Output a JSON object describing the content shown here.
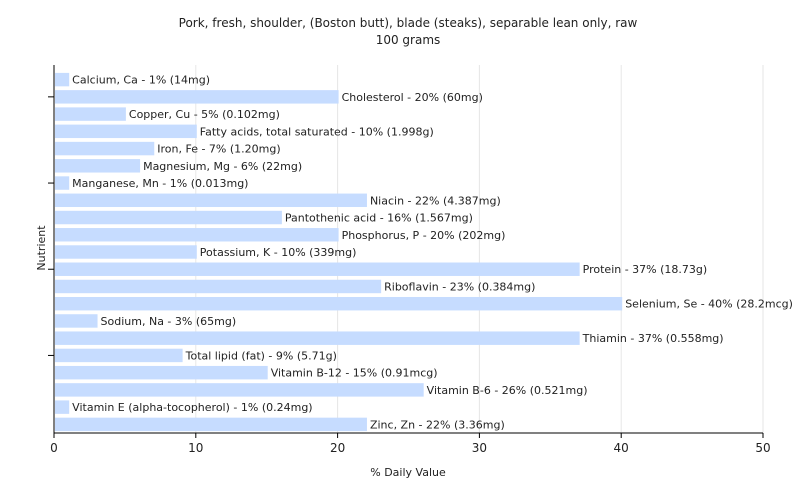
{
  "chart_data": {
    "type": "bar",
    "orientation": "horizontal",
    "title": "Pork, fresh, shoulder, (Boston butt), blade (steaks), separable lean only, raw",
    "subtitle": "100 grams",
    "xlabel": "% Daily Value",
    "ylabel": "Nutrient",
    "xlim": [
      0,
      50
    ],
    "xticks": [
      0,
      10,
      20,
      30,
      40,
      50
    ],
    "grid": true,
    "bar_color": "#c6dcff",
    "categories": [
      "Calcium, Ca - 1% (14mg)",
      "Cholesterol - 20% (60mg)",
      "Copper, Cu - 5% (0.102mg)",
      "Fatty acids, total saturated - 10% (1.998g)",
      "Iron, Fe - 7% (1.20mg)",
      "Magnesium, Mg - 6% (22mg)",
      "Manganese, Mn - 1% (0.013mg)",
      "Niacin - 22% (4.387mg)",
      "Pantothenic acid - 16% (1.567mg)",
      "Phosphorus, P - 20% (202mg)",
      "Potassium, K - 10% (339mg)",
      "Protein - 37% (18.73g)",
      "Riboflavin - 23% (0.384mg)",
      "Selenium, Se - 40% (28.2mcg)",
      "Sodium, Na - 3% (65mg)",
      "Thiamin - 37% (0.558mg)",
      "Total lipid (fat) - 9% (5.71g)",
      "Vitamin B-12 - 15% (0.91mcg)",
      "Vitamin B-6 - 26% (0.521mg)",
      "Vitamin E (alpha-tocopherol) - 1% (0.24mg)",
      "Zinc, Zn - 22% (3.36mg)"
    ],
    "values": [
      1,
      20,
      5,
      10,
      7,
      6,
      1,
      22,
      16,
      20,
      10,
      37,
      23,
      40,
      3,
      37,
      9,
      15,
      26,
      1,
      22
    ]
  }
}
